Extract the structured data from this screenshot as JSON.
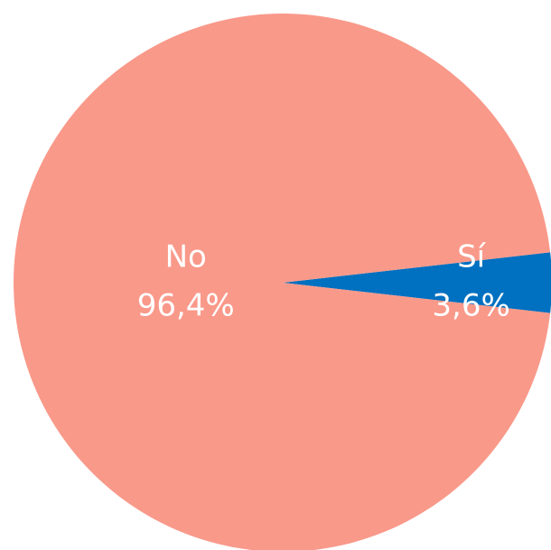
{
  "chart_data": {
    "type": "pie",
    "categories": [
      "Sí",
      "No"
    ],
    "values": [
      3.6,
      96.4
    ],
    "value_labels": [
      "3,6%",
      "96,4%"
    ],
    "colors": [
      "#0070C0",
      "#F9998A"
    ]
  }
}
